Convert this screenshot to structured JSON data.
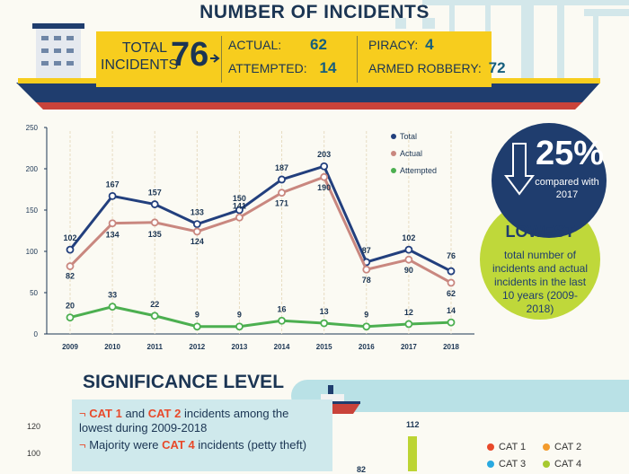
{
  "header": {
    "title": "NUMBER OF INCIDENTS",
    "total_label_line1": "TOTAL",
    "total_label_line2": "INCIDENTS",
    "total_value": "76",
    "actual_label": "ACTUAL:",
    "actual_value": "62",
    "attempted_label": "ATTEMPTED:",
    "attempted_value": "14",
    "piracy_label": "PIRACY:",
    "piracy_value": "4",
    "armed_label": "ARMED ROBBERY:",
    "armed_value": "72"
  },
  "callout": {
    "percent": "25%",
    "percent_sub": "compared with 2017",
    "lowest": "LOWEST",
    "lowest_sub": "total number of incidents and actual incidents in the last 10 years (2009-2018)"
  },
  "chart_data": {
    "type": "line",
    "title": "",
    "xlabel": "",
    "ylabel": "",
    "x": [
      "2009",
      "2010",
      "2011",
      "2012",
      "2013",
      "2014",
      "2015",
      "2016",
      "2017",
      "2018"
    ],
    "ylim": [
      0,
      250
    ],
    "yticks": [
      0,
      50,
      100,
      150,
      200,
      250
    ],
    "legend_position": "top-right",
    "series": [
      {
        "name": "Total",
        "color": "#223f7d",
        "values": [
          102,
          167,
          157,
          133,
          150,
          187,
          203,
          87,
          102,
          76
        ]
      },
      {
        "name": "Actual",
        "color": "#c9877f",
        "values": [
          82,
          134,
          135,
          124,
          141,
          171,
          190,
          78,
          90,
          62
        ]
      },
      {
        "name": "Attempted",
        "color": "#4caf50",
        "values": [
          20,
          33,
          22,
          9,
          9,
          16,
          13,
          9,
          12,
          14
        ]
      }
    ]
  },
  "significance": {
    "title": "SIGNIFICANCE LEVEL",
    "note1_a": "CAT 1",
    "note1_b": " and ",
    "note1_c": "CAT 2",
    "note1_d": " incidents among the lowest during 2009-2018",
    "note2_a": "Majority were ",
    "note2_b": "CAT 4",
    "note2_c": " incidents (petty theft)",
    "y_ticks": [
      "120",
      "100"
    ],
    "value_labels": [
      "112",
      "82"
    ],
    "legend": [
      {
        "label": "CAT 1",
        "color": "#e8492a"
      },
      {
        "label": "CAT 2",
        "color": "#f39b2c"
      },
      {
        "label": "CAT 3",
        "color": "#29a9e0"
      },
      {
        "label": "CAT 4",
        "color": "#a6c92f"
      }
    ]
  }
}
